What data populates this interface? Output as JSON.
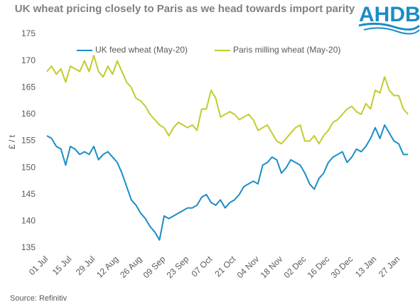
{
  "chart_data": {
    "type": "line",
    "title": "UK wheat pricing closely to Paris as we head towards import parity",
    "logo": "AHDB",
    "ylabel": "£ / t",
    "source": "Source: Refinitiv",
    "categories": [
      "01 Jul",
      null,
      null,
      null,
      null,
      "15 Jul",
      null,
      null,
      null,
      null,
      "29 Jul",
      null,
      null,
      null,
      null,
      "12 Aug",
      null,
      null,
      null,
      null,
      "26 Aug",
      null,
      null,
      null,
      null,
      "09 Sep",
      null,
      null,
      null,
      null,
      "23 Sep",
      null,
      null,
      null,
      null,
      "07 Oct",
      null,
      null,
      null,
      null,
      "21 Oct",
      null,
      null,
      null,
      null,
      "04 Nov",
      null,
      null,
      null,
      null,
      "18 Nov",
      null,
      null,
      null,
      null,
      "02 Dec",
      null,
      null,
      null,
      null,
      "16 Dec",
      null,
      null,
      null,
      null,
      "30 Dec",
      null,
      null,
      null,
      null,
      "13 Jan",
      null,
      null,
      null,
      null,
      "27 Jan",
      null,
      null
    ],
    "series": [
      {
        "name": "UK feed wheat (May-20)",
        "color": "#1b8dc5",
        "values": [
          156,
          155.5,
          154,
          153.5,
          150.5,
          154,
          153.5,
          152.5,
          153,
          152.5,
          154,
          151.5,
          152.5,
          153,
          152,
          151,
          149,
          146.5,
          144,
          143,
          141.5,
          140.5,
          139,
          138,
          136.5,
          141,
          140.5,
          141,
          141.5,
          142,
          142.5,
          142.5,
          143,
          144.5,
          145,
          143.5,
          143,
          144,
          142.5,
          143.5,
          144,
          145,
          146.5,
          147,
          147.5,
          147,
          150.5,
          151,
          152,
          151.5,
          149,
          150,
          151.5,
          151,
          150.5,
          149,
          147,
          146,
          148,
          149,
          151,
          152,
          152.5,
          153,
          151,
          152,
          153.5,
          153,
          154,
          155.5,
          157.5,
          155.5,
          158,
          156.5,
          155,
          154.5,
          152.5,
          152.5
        ]
      },
      {
        "name": "Paris milling wheat (May-20)",
        "color": "#c3cb2e",
        "values": [
          168,
          169,
          167.5,
          168.5,
          166,
          169,
          168.5,
          168,
          170,
          168,
          171,
          168,
          167,
          169,
          167.5,
          170,
          168,
          166,
          165,
          163,
          162.5,
          161.5,
          160,
          159,
          158,
          157.5,
          156,
          157.5,
          158.5,
          158,
          157.5,
          158,
          157,
          161,
          161,
          164.5,
          163,
          159.5,
          160,
          160.5,
          160,
          159,
          159.5,
          160,
          159,
          157,
          157.5,
          158,
          156.5,
          155,
          154.5,
          155.5,
          156.5,
          157.5,
          158,
          155,
          155,
          156,
          154.5,
          156,
          157,
          158.5,
          159,
          160,
          161,
          161.5,
          160.5,
          160,
          162,
          161,
          164.5,
          164,
          167,
          164.5,
          163.5,
          163.5,
          161,
          160
        ]
      }
    ],
    "ylim": [
      135,
      175
    ],
    "yticks": [
      135,
      140,
      145,
      150,
      155,
      160,
      165,
      170,
      175
    ],
    "grid": false
  }
}
